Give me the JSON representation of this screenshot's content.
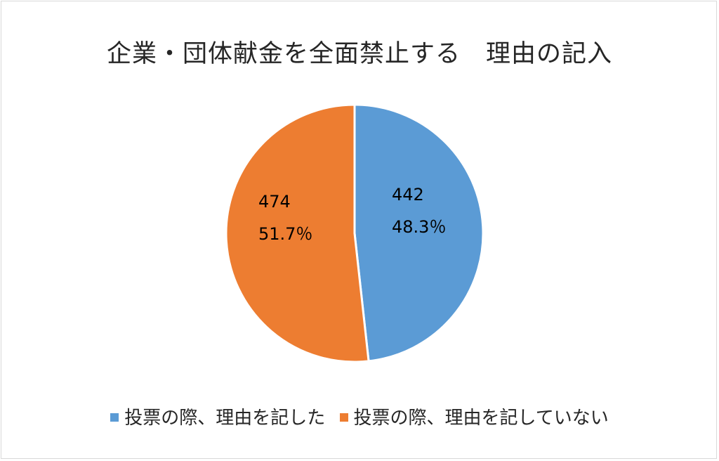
{
  "chart_data": {
    "type": "pie",
    "title": "企業・団体献金を全面禁止する　理由の記入",
    "categories": [
      "投票の際、理由を記した",
      "投票の際、理由を記していない"
    ],
    "values": [
      442,
      474
    ],
    "percent_labels": [
      "48.3％",
      "51.7％"
    ],
    "value_labels": [
      "442",
      "474"
    ],
    "colors": [
      "#5b9bd5",
      "#ed7d31"
    ],
    "legend_position": "bottom",
    "start_angle": "12 o'clock",
    "direction": "clockwise"
  }
}
